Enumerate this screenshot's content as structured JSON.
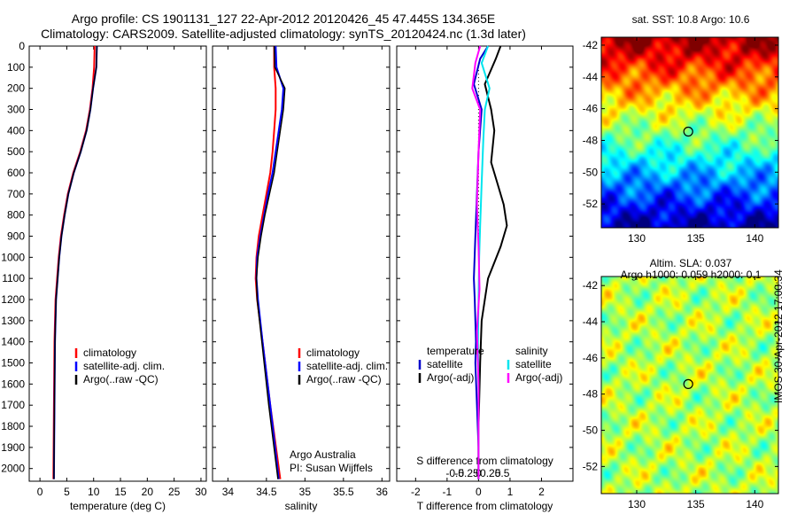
{
  "header": {
    "line1": "Argo profile: CS 1901131_127 22-Apr-2012 20120426_45 47.445S 134.365E",
    "line2": "Climatology: CARS2009. Satellite-adjusted climatology: synTS_20120424.nc (1.3d later)"
  },
  "colors": {
    "climatology": "#ff0000",
    "satellite": "#0000ff",
    "argo": "#000000",
    "t_satellite": "#0000cc",
    "s_satellite": "#00e5ee",
    "s_argo": "#ff00ff"
  },
  "depth_ticks": [
    "0",
    "100",
    "200",
    "300",
    "400",
    "500",
    "600",
    "700",
    "800",
    "900",
    "1000",
    "1100",
    "1200",
    "1300",
    "1400",
    "1500",
    "1600",
    "1700",
    "1800",
    "1900",
    "2000"
  ],
  "panels": {
    "temperature": {
      "xlabel": "temperature (deg C)",
      "xticks": [
        "0",
        "5",
        "10",
        "15",
        "20",
        "25",
        "30"
      ],
      "legend": [
        "climatology",
        "satellite-adj. clim.",
        "Argo(..raw -QC)"
      ]
    },
    "salinity": {
      "xlabel": "salinity",
      "xticks": [
        "34",
        "34.5",
        "35",
        "35.5",
        "36"
      ],
      "legend": [
        "climatology",
        "satellite-adj. clim.",
        "Argo(..raw -QC)"
      ],
      "credit1": "Argo Australia",
      "credit2": "PI: Susan Wijffels"
    },
    "difference": {
      "xlabel": "T difference from climatology",
      "top_label": "S difference from climatology",
      "t_ticks": [
        "-2",
        "-1",
        "0",
        "1",
        "2"
      ],
      "s_ticks": [
        "-0.5",
        "-0.25",
        "0",
        "0.25",
        "0.5"
      ],
      "legend_t_head": "temperature",
      "legend_s_head": "salinity",
      "legend_t": [
        "satellite",
        "Argo(-adj)"
      ],
      "legend_s": [
        "satellite",
        "Argo(-adj)"
      ]
    }
  },
  "maps": {
    "sst_title": "sat. SST: 10.8  Argo: 10.6",
    "sla_title1": "Altim. SLA: 0.037",
    "sla_title2": "Argo h1000: 0.059 h2000: 0.1",
    "lat_ticks": [
      "-42",
      "-44",
      "-46",
      "-48",
      "-50",
      "-52"
    ],
    "lon_ticks": [
      "130",
      "135",
      "140"
    ],
    "profile_lon": 134.365,
    "profile_lat": -47.445,
    "lon_range": [
      127,
      142
    ],
    "lat_range": [
      -53.5,
      -41.5
    ]
  },
  "side_stamp": "IMOS 30-Apr-2012 17:00:34",
  "chart_data": [
    {
      "type": "line",
      "xlabel": "temperature (deg C)",
      "ylabel": "depth",
      "xlim": [
        -2,
        31
      ],
      "ylim": [
        2060,
        0
      ],
      "series": [
        {
          "name": "climatology",
          "x": [
            10.2,
            10.1,
            9.8,
            9.3,
            8.6,
            7.5,
            6.2,
            5.2,
            4.5,
            3.9,
            3.5,
            3.2,
            2.9,
            2.7,
            2.6,
            2.5
          ],
          "y": [
            0,
            100,
            200,
            300,
            400,
            500,
            600,
            700,
            800,
            900,
            1000,
            1100,
            1200,
            1400,
            1700,
            2050
          ]
        },
        {
          "name": "satellite-adj. clim.",
          "x": [
            10.6,
            10.5,
            9.9,
            9.4,
            8.7,
            7.6,
            6.3,
            5.3,
            4.6,
            4.0,
            3.6,
            3.3,
            3.0,
            2.8,
            2.7,
            2.6
          ],
          "y": [
            0,
            100,
            200,
            300,
            400,
            500,
            600,
            700,
            800,
            900,
            1000,
            1100,
            1200,
            1400,
            1700,
            2050
          ]
        },
        {
          "name": "Argo(..raw -QC)",
          "x": [
            10.6,
            10.5,
            9.9,
            9.4,
            8.7,
            7.6,
            6.3,
            5.3,
            4.6,
            4.0,
            3.6,
            3.3,
            3.0,
            2.8,
            2.7,
            2.6
          ],
          "y": [
            0,
            100,
            200,
            300,
            400,
            500,
            600,
            700,
            800,
            900,
            1000,
            1100,
            1200,
            1400,
            1700,
            2050
          ]
        }
      ]
    },
    {
      "type": "line",
      "xlabel": "salinity",
      "ylabel": "depth",
      "xlim": [
        33.8,
        36.1
      ],
      "ylim": [
        2060,
        0
      ],
      "series": [
        {
          "name": "climatology",
          "x": [
            34.6,
            34.6,
            34.62,
            34.62,
            34.6,
            34.58,
            34.55,
            34.5,
            34.45,
            34.4,
            34.37,
            34.36,
            34.38,
            34.45,
            34.55,
            34.68
          ],
          "y": [
            0,
            100,
            200,
            300,
            400,
            500,
            600,
            700,
            800,
            900,
            1000,
            1100,
            1200,
            1400,
            1700,
            2050
          ]
        },
        {
          "name": "satellite-adj. clim.",
          "x": [
            34.62,
            34.63,
            34.72,
            34.7,
            34.66,
            34.62,
            34.58,
            34.52,
            34.47,
            34.42,
            34.38,
            34.37,
            34.39,
            34.45,
            34.55,
            34.66
          ],
          "y": [
            0,
            100,
            200,
            300,
            400,
            500,
            600,
            700,
            800,
            900,
            1000,
            1100,
            1200,
            1400,
            1700,
            2050
          ]
        },
        {
          "name": "Argo(..raw -QC)",
          "x": [
            34.6,
            34.61,
            34.74,
            34.72,
            34.68,
            34.64,
            34.6,
            34.54,
            34.48,
            34.43,
            34.39,
            34.37,
            34.38,
            34.44,
            34.53,
            34.65
          ],
          "y": [
            0,
            100,
            200,
            300,
            400,
            500,
            600,
            700,
            800,
            900,
            1000,
            1100,
            1200,
            1400,
            1700,
            2050
          ]
        }
      ]
    },
    {
      "type": "line",
      "xlabel": "T difference from climatology",
      "ylabel": "depth",
      "xlim": [
        -2.6,
        3
      ],
      "ylim": [
        2060,
        0
      ],
      "series": [
        {
          "name": "temperature satellite",
          "x": [
            0.3,
            0.05,
            -0.15,
            0.1,
            0,
            -0.05,
            -0.1,
            -0.15,
            -0.12,
            -0.1,
            -0.08,
            -0.1,
            -0.05,
            0,
            0
          ],
          "y": [
            0,
            60,
            180,
            300,
            500,
            700,
            900,
            1100,
            1200,
            1300,
            1400,
            1500,
            1700,
            1900,
            2050
          ]
        },
        {
          "name": "temperature Argo(-adj)",
          "x": [
            0.7,
            0.55,
            0.2,
            0.4,
            0.5,
            0.4,
            0.6,
            0.8,
            0.9,
            0.7,
            0.3,
            0.1,
            0.05,
            0,
            0
          ],
          "y": [
            0,
            60,
            180,
            300,
            400,
            550,
            650,
            750,
            850,
            950,
            1100,
            1300,
            1500,
            1800,
            2050
          ]
        },
        {
          "name": "salinity satellite",
          "x": [
            0.3,
            0.1,
            0.35,
            0.2,
            0.15,
            0.1,
            0.05,
            0.02,
            0,
            -0.02,
            0,
            0,
            0
          ],
          "y": [
            0,
            80,
            200,
            300,
            450,
            650,
            850,
            1000,
            1200,
            1400,
            1600,
            1800,
            2050
          ]
        },
        {
          "name": "salinity Argo(-adj)",
          "x": [
            0.05,
            -0.1,
            -0.2,
            0.05,
            0.0,
            -0.05,
            0,
            0.03,
            -0.05,
            0,
            0
          ],
          "y": [
            0,
            80,
            200,
            300,
            500,
            750,
            950,
            1150,
            1350,
            1600,
            2050
          ]
        }
      ]
    }
  ]
}
